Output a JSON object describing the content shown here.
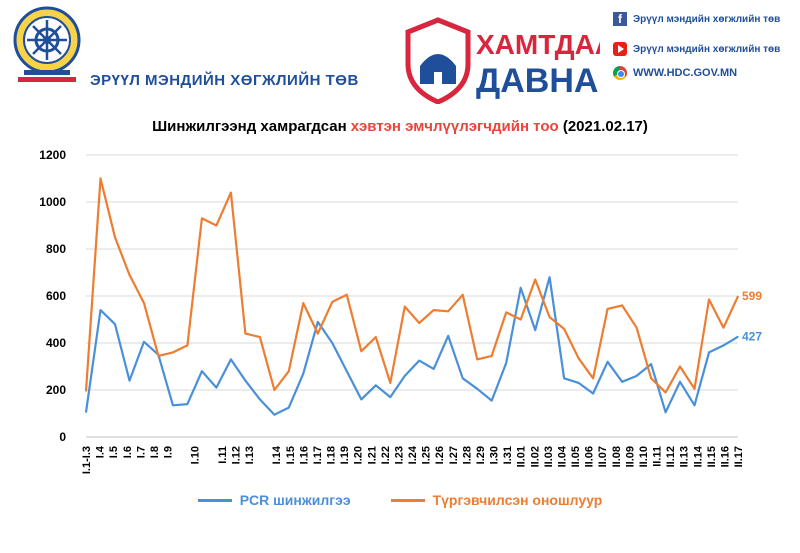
{
  "header": {
    "org_name": "ЭРҮҮЛ МЭНДИЙН ХӨГЖЛИЙН ТӨВ",
    "org_logo_icon": "dharma-wheel-emblem-icon",
    "campaign": {
      "line1": "ХАМТДАА",
      "line2": "ДАВНА",
      "icon": "ger-shield-icon",
      "color": "#d7263d"
    },
    "social": {
      "facebook": "Эрүүл мэндийн хөгжлийн төв",
      "youtube": "Эрүүл мэндийн хөгжлийн төв",
      "website": "WWW.HDC.GOV.MN"
    }
  },
  "chart_data": {
    "type": "line",
    "title_prefix": "Шинжилгээнд хамрагдсан ",
    "title_highlight": "хэвтэн эмчлүүлэгчдийн тоо",
    "title_suffix": " (2021.02.17)",
    "xlabel": "",
    "ylabel": "",
    "ylim": [
      0,
      1200
    ],
    "yticks": [
      0,
      200,
      400,
      600,
      800,
      1000,
      1200
    ],
    "grid": true,
    "legend_position": "bottom",
    "categories": [
      "I.1-I.3",
      "I.4",
      "I.5",
      "I.6",
      "I.7",
      "I.8",
      "I.9",
      "I.10",
      "I.11",
      "I.12",
      "I.13",
      "I.14",
      "I.15",
      "I.16",
      "I.17",
      "I.18",
      "I.19",
      "I.20",
      "I.21",
      "I.22",
      "I.23",
      "I.24",
      "I.25",
      "I.26",
      "I.27",
      "I.28",
      "I.29",
      "I.30",
      "I.31",
      "II.01",
      "II.02",
      "II.03",
      "II.04",
      "II.05",
      "II.06",
      "II.07",
      "II.08",
      "II.09",
      "II.10",
      "II.11",
      "II.12",
      "II.13",
      "II.14",
      "II.15",
      "II.16",
      "II.17"
    ],
    "category_labels": [
      "I.1-I.3",
      "I.4",
      "I.5",
      "I.6",
      "I.7",
      "I.8",
      "I.9",
      "",
      "I.10",
      "",
      "I.11",
      "I.12",
      "I.13",
      "",
      "I.14",
      "I.15",
      "I.16",
      "I.17",
      "I.18",
      "I.19",
      "I.20",
      "I.21",
      "I.22",
      "I.23",
      "I.24",
      "I.25",
      "I.26",
      "I.27",
      "I.28",
      "I.29",
      "I.30",
      "I.31",
      "II.01",
      "II.02",
      "II.03",
      "II.04",
      "II.05",
      "II.06",
      "II.07",
      "II.08",
      "II.09",
      "II.10",
      "II.11",
      "II.12",
      "II.13",
      "II.14",
      "II.15",
      "II.16",
      "II.17"
    ],
    "series": [
      {
        "name": "PCR шинжилгээ",
        "color": "#4a90d9",
        "values": [
          105,
          540,
          480,
          240,
          405,
          350,
          135,
          140,
          280,
          210,
          330,
          240,
          160,
          95,
          125,
          270,
          490,
          400,
          280,
          160,
          220,
          170,
          260,
          325,
          290,
          430,
          250,
          205,
          155,
          315,
          635,
          455,
          680,
          250,
          230,
          185,
          320,
          235,
          260,
          310,
          105,
          235,
          135,
          360,
          390,
          427
        ],
        "end_label": "427"
      },
      {
        "name": "Түргэвчилсэн оношлуур",
        "color": "#ed7d31",
        "values": [
          195,
          1100,
          850,
          690,
          570,
          345,
          360,
          390,
          930,
          900,
          1040,
          440,
          425,
          200,
          280,
          570,
          440,
          575,
          605,
          365,
          425,
          230,
          555,
          485,
          540,
          535,
          605,
          330,
          345,
          530,
          500,
          670,
          510,
          460,
          335,
          250,
          545,
          560,
          465,
          250,
          190,
          300,
          205,
          585,
          465,
          599
        ],
        "end_label": "599"
      }
    ]
  }
}
